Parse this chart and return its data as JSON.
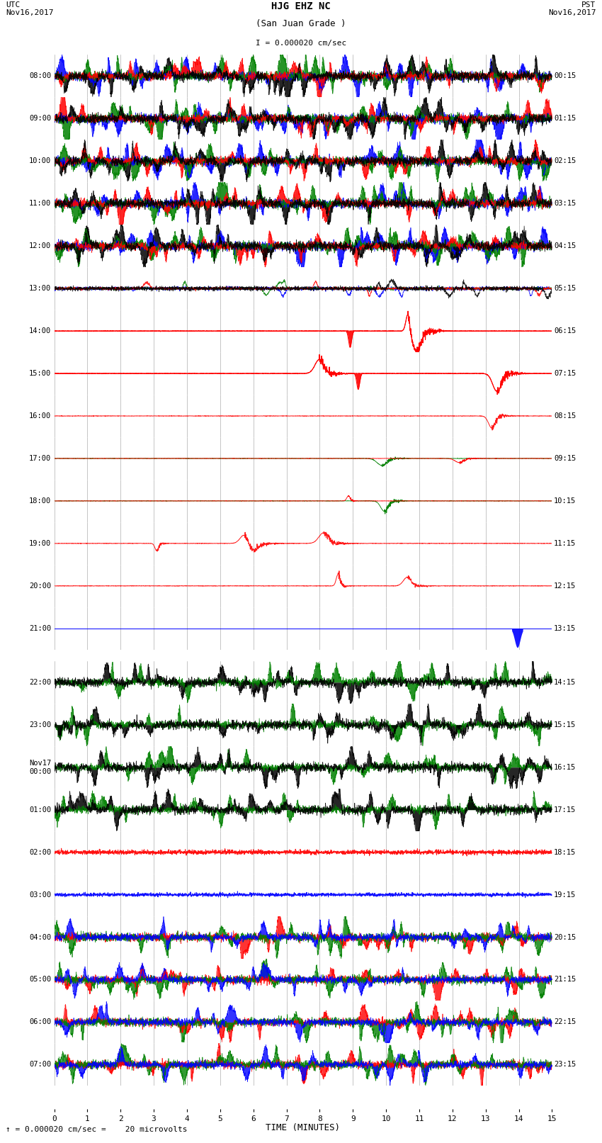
{
  "title_line1": "HJG EHZ NC",
  "title_line2": "(San Juan Grade )",
  "scale_label": "I = 0.000020 cm/sec",
  "utc_label": "UTC\nNov16,2017",
  "pst_label": "PST\nNov16,2017",
  "xlabel": "TIME (MINUTES)",
  "bottom_label": "= 0.000020 cm/sec =    20 microvolts",
  "xlim": [
    0,
    15
  ],
  "left_times_top": [
    "08:00",
    "09:00",
    "10:00",
    "11:00",
    "12:00",
    "13:00",
    "14:00",
    "15:00",
    "16:00",
    "17:00",
    "18:00",
    "19:00",
    "20:00",
    "21:00"
  ],
  "left_times_bottom": [
    "22:00",
    "23:00",
    "Nov17\n00:00",
    "01:00",
    "02:00",
    "03:00",
    "04:00",
    "05:00",
    "06:00",
    "07:00"
  ],
  "right_times_top": [
    "00:15",
    "01:15",
    "02:15",
    "03:15",
    "04:15",
    "05:15",
    "06:15",
    "07:15",
    "08:15",
    "09:15",
    "10:15",
    "11:15",
    "12:15",
    "13:15"
  ],
  "right_times_bottom": [
    "14:15",
    "15:15",
    "16:15",
    "17:15",
    "18:15",
    "19:15",
    "20:15",
    "21:15",
    "22:15",
    "23:15"
  ]
}
